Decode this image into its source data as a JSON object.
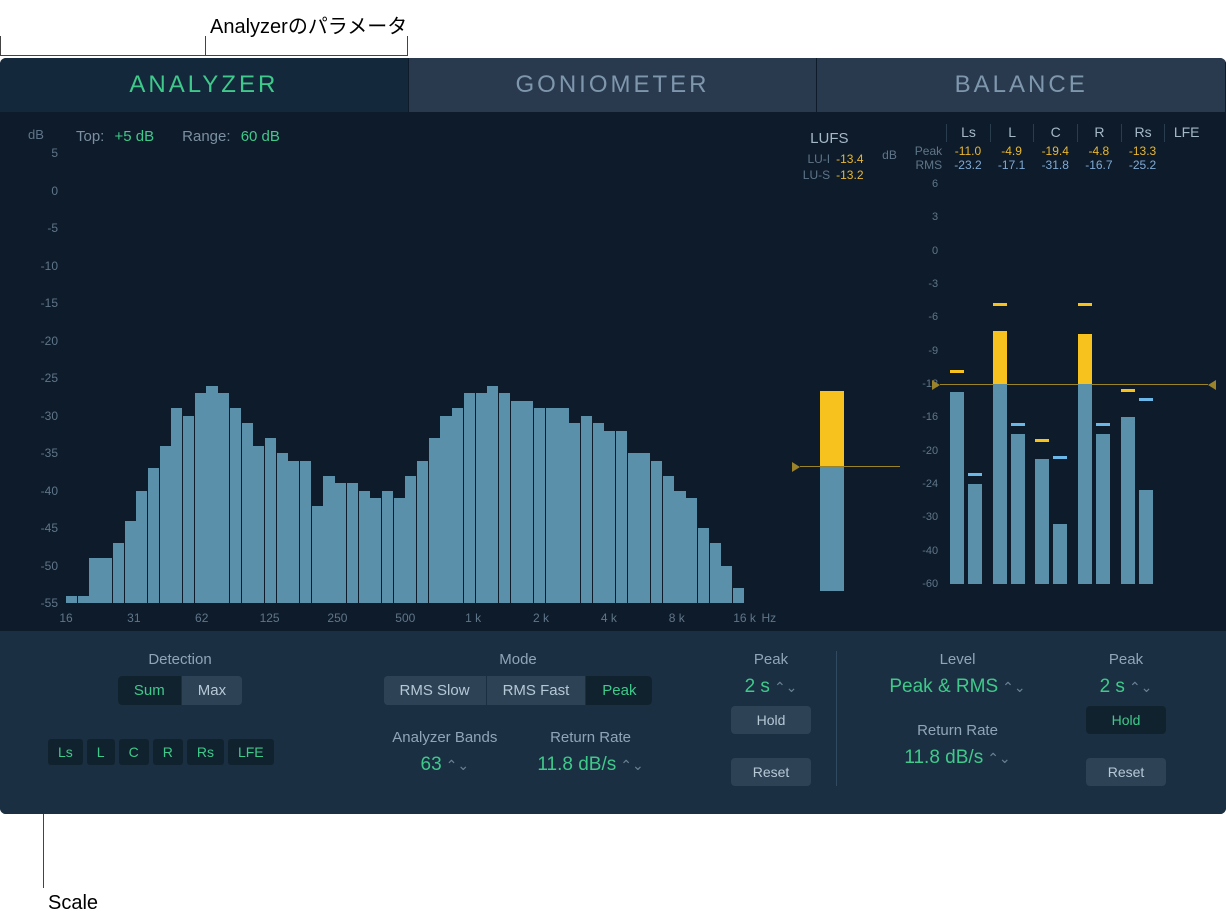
{
  "annotations": {
    "top": "Analyzerのパラメータ",
    "bottom": "Scale"
  },
  "tabs": [
    "ANALYZER",
    "GONIOMETER",
    "BALANCE"
  ],
  "activeTab": 0,
  "topParams": {
    "topLabel": "Top:",
    "topValue": "+5 dB",
    "rangeLabel": "Range:",
    "rangeValue": "60 dB",
    "dbLabel": "dB"
  },
  "spectrum": {
    "yTicks": [
      5,
      0,
      -5,
      -10,
      -15,
      -20,
      -25,
      -30,
      -35,
      -40,
      -45,
      -50,
      -55
    ],
    "yMin": -55,
    "yMax": 5,
    "xTicks": [
      "16",
      "31",
      "62",
      "125",
      "250",
      "500",
      "1 k",
      "2 k",
      "4 k",
      "8 k",
      "16 k"
    ],
    "hzLabel": "Hz",
    "bars": [
      -54,
      -54,
      -49,
      -49,
      -47,
      -44,
      -40,
      -37,
      -34,
      -29,
      -30,
      -27,
      -26,
      -27,
      -29,
      -31,
      -34,
      -33,
      -35,
      -36,
      -36,
      -42,
      -38,
      -39,
      -39,
      -40,
      -41,
      -40,
      -41,
      -38,
      -36,
      -33,
      -30,
      -29,
      -27,
      -27,
      -26,
      -27,
      -28,
      -28,
      -29,
      -29,
      -29,
      -31,
      -30,
      -31,
      -32,
      -32,
      -35,
      -35,
      -36,
      -38,
      -40,
      -41,
      -45,
      -47,
      -50,
      -53
    ]
  },
  "lufs": {
    "title": "LUFS",
    "rows": [
      {
        "k": "LU-I",
        "v": "-13.4"
      },
      {
        "k": "LU-S",
        "v": "-13.2"
      }
    ],
    "barTop": -12,
    "barBottom": -60,
    "yellowTop": -12,
    "yellowBottom": -21,
    "lineAt": -21
  },
  "channels": {
    "dbLabel": "dB",
    "headers": [
      "Ls",
      "L",
      "C",
      "R",
      "Rs",
      "LFE"
    ],
    "peakLabel": "Peak",
    "rmsLabel": "RMS",
    "peak": [
      "-11.0",
      "-4.9",
      "-19.4",
      "-4.8",
      "-13.3",
      ""
    ],
    "rms": [
      "-23.2",
      "-17.1",
      "-31.8",
      "-16.7",
      "-25.2",
      ""
    ],
    "yTicks": [
      6,
      3,
      0,
      -3,
      -6,
      -9,
      -12,
      -16,
      -20,
      -24,
      -30,
      -40,
      -60
    ],
    "lineAt": -12,
    "cols": [
      {
        "yellowTop": -13,
        "blueTop": -24,
        "peakY": -11,
        "peakB": -23
      },
      {
        "yellowTop": -7.2,
        "blueTop": -18,
        "peakY": -5,
        "peakB": -17
      },
      {
        "yellowTop": -21,
        "blueTop": -32,
        "peakY": -19,
        "peakB": -21
      },
      {
        "yellowTop": -7.5,
        "blueTop": -18,
        "peakY": -5,
        "peakB": -17
      },
      {
        "yellowTop": -16,
        "blueTop": -25,
        "peakY": -13,
        "peakB": -14
      },
      {
        "yellowTop": null,
        "blueTop": null,
        "peakY": null,
        "peakB": null
      }
    ]
  },
  "controls": {
    "detection": {
      "title": "Detection",
      "opts": [
        "Sum",
        "Max"
      ],
      "active": 0
    },
    "channelToggles": [
      "Ls",
      "L",
      "C",
      "R",
      "Rs",
      "LFE"
    ],
    "mode": {
      "title": "Mode",
      "opts": [
        "RMS Slow",
        "RMS Fast",
        "Peak"
      ],
      "active": 2
    },
    "bands": {
      "title": "Analyzer Bands",
      "value": "63"
    },
    "returnRate1": {
      "title": "Return Rate",
      "value": "11.8 dB/s"
    },
    "peak1": {
      "title": "Peak",
      "value": "2 s",
      "hold": "Hold",
      "holdActive": false,
      "reset": "Reset"
    },
    "level": {
      "title": "Level",
      "value": "Peak & RMS"
    },
    "returnRate2": {
      "title": "Return Rate",
      "value": "11.8 dB/s"
    },
    "peak2": {
      "title": "Peak",
      "value": "2 s",
      "hold": "Hold",
      "holdActive": true,
      "reset": "Reset"
    }
  },
  "colors": {
    "barBlue": "#5b90ab",
    "barYellow": "#f7c21e",
    "accentGreen": "#3fc98a"
  }
}
